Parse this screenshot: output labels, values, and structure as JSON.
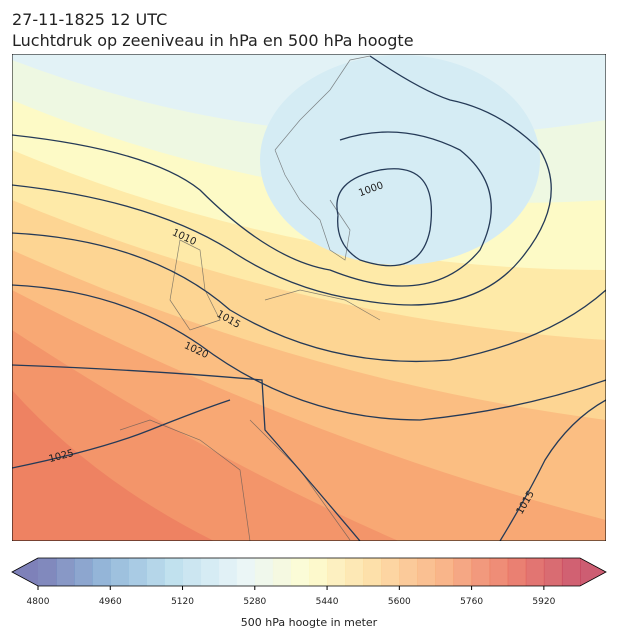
{
  "header": {
    "time": "27-11-1825 12 UTC",
    "title": "Luchtdruk op zeeniveau in hPa en 500 hPa hoogte"
  },
  "map": {
    "isobar_labels": [
      "1000",
      "1010",
      "1015",
      "1020",
      "1025",
      "1015"
    ]
  },
  "colorbar": {
    "label": "500 hPa hoogte in meter",
    "lim": [
      4800,
      6000
    ],
    "ticks": [
      4800,
      4960,
      5120,
      5280,
      5440,
      5600,
      5760,
      5920
    ],
    "levels": 30,
    "colors": [
      "#5e62a8",
      "#7ba7d1",
      "#b1d9ea",
      "#e4f3f7",
      "#fdfcc6",
      "#fdd592",
      "#f7a26d",
      "#e8634f",
      "#c0344f"
    ]
  }
}
